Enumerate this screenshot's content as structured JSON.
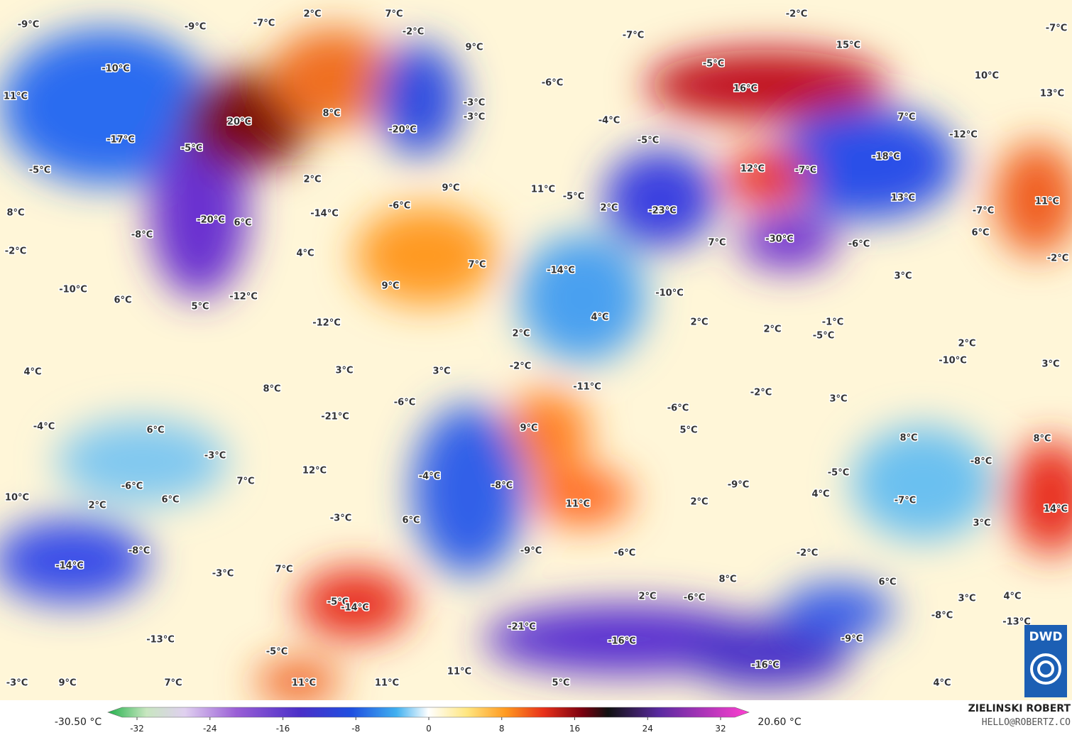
{
  "map": {
    "labels": [
      "-9°C",
      "-9°C",
      "-7°C",
      "2°C",
      "7°C",
      "-2°C",
      "9°C",
      "-7°C",
      "-2°C",
      "15°C",
      "-7°C",
      "-10°C",
      "-5°C",
      "-6°C",
      "10°C",
      "11°C",
      "16°C",
      "13°C",
      "-3°C",
      "-3°C",
      "8°C",
      "20°C",
      "-4°C",
      "-20°C",
      "7°C",
      "-12°C",
      "-17°C",
      "-5°C",
      "-5°C",
      "-18°C",
      "-5°C",
      "12°C",
      "-7°C",
      "2°C",
      "9°C",
      "11°C",
      "-5°C",
      "13°C",
      "11°C",
      "8°C",
      "-6°C",
      "-14°C",
      "2°C",
      "-23°C",
      "-7°C",
      "-20°C",
      "6°C",
      "-8°C",
      "6°C",
      "-30°C",
      "7°C",
      "-6°C",
      "-2°C",
      "4°C",
      "-2°C",
      "7°C",
      "-14°C",
      "3°C",
      "-10°C",
      "9°C",
      "-10°C",
      "-12°C",
      "6°C",
      "5°C",
      "4°C",
      "-12°C",
      "2°C",
      "2°C",
      "2°C",
      "-1°C",
      "-5°C",
      "2°C",
      "-10°C",
      "3°C",
      "-2°C",
      "4°C",
      "3°C",
      "3°C",
      "-11°C",
      "-2°C",
      "3°C",
      "8°C",
      "-6°C",
      "-6°C",
      "-4°C",
      "6°C",
      "-21°C",
      "9°C",
      "5°C",
      "8°C",
      "8°C",
      "-3°C",
      "-8°C",
      "12°C",
      "-4°C",
      "-5°C",
      "7°C",
      "-6°C",
      "-8°C",
      "-9°C",
      "4°C",
      "10°C",
      "6°C",
      "11°C",
      "2°C",
      "-7°C",
      "14°C",
      "2°C",
      "-3°C",
      "6°C",
      "3°C",
      "-8°C",
      "-9°C",
      "-6°C",
      "-2°C",
      "-14°C",
      "7°C",
      "-3°C",
      "8°C",
      "6°C",
      "2°C",
      "-6°C",
      "4°C",
      "3°C",
      "-5°C",
      "-14°C",
      "-8°C",
      "-13°C",
      "-21°C",
      "-16°C",
      "-9°C",
      "-13°C",
      "-5°C",
      "-16°C",
      "11°C",
      "-3°C",
      "9°C",
      "7°C",
      "11°C",
      "11°C",
      "5°C",
      "4°C"
    ]
  },
  "colorbar": {
    "min_label": "-30.50 °C",
    "max_label": "20.60 °C",
    "ticks": [
      -32,
      -24,
      -16,
      -8,
      0,
      8,
      16,
      24,
      32
    ]
  },
  "credit": {
    "author": "ZIELINSKI ROBERT",
    "contact": "HELLO@ROBERTZ.CO",
    "logo": "DWD"
  }
}
